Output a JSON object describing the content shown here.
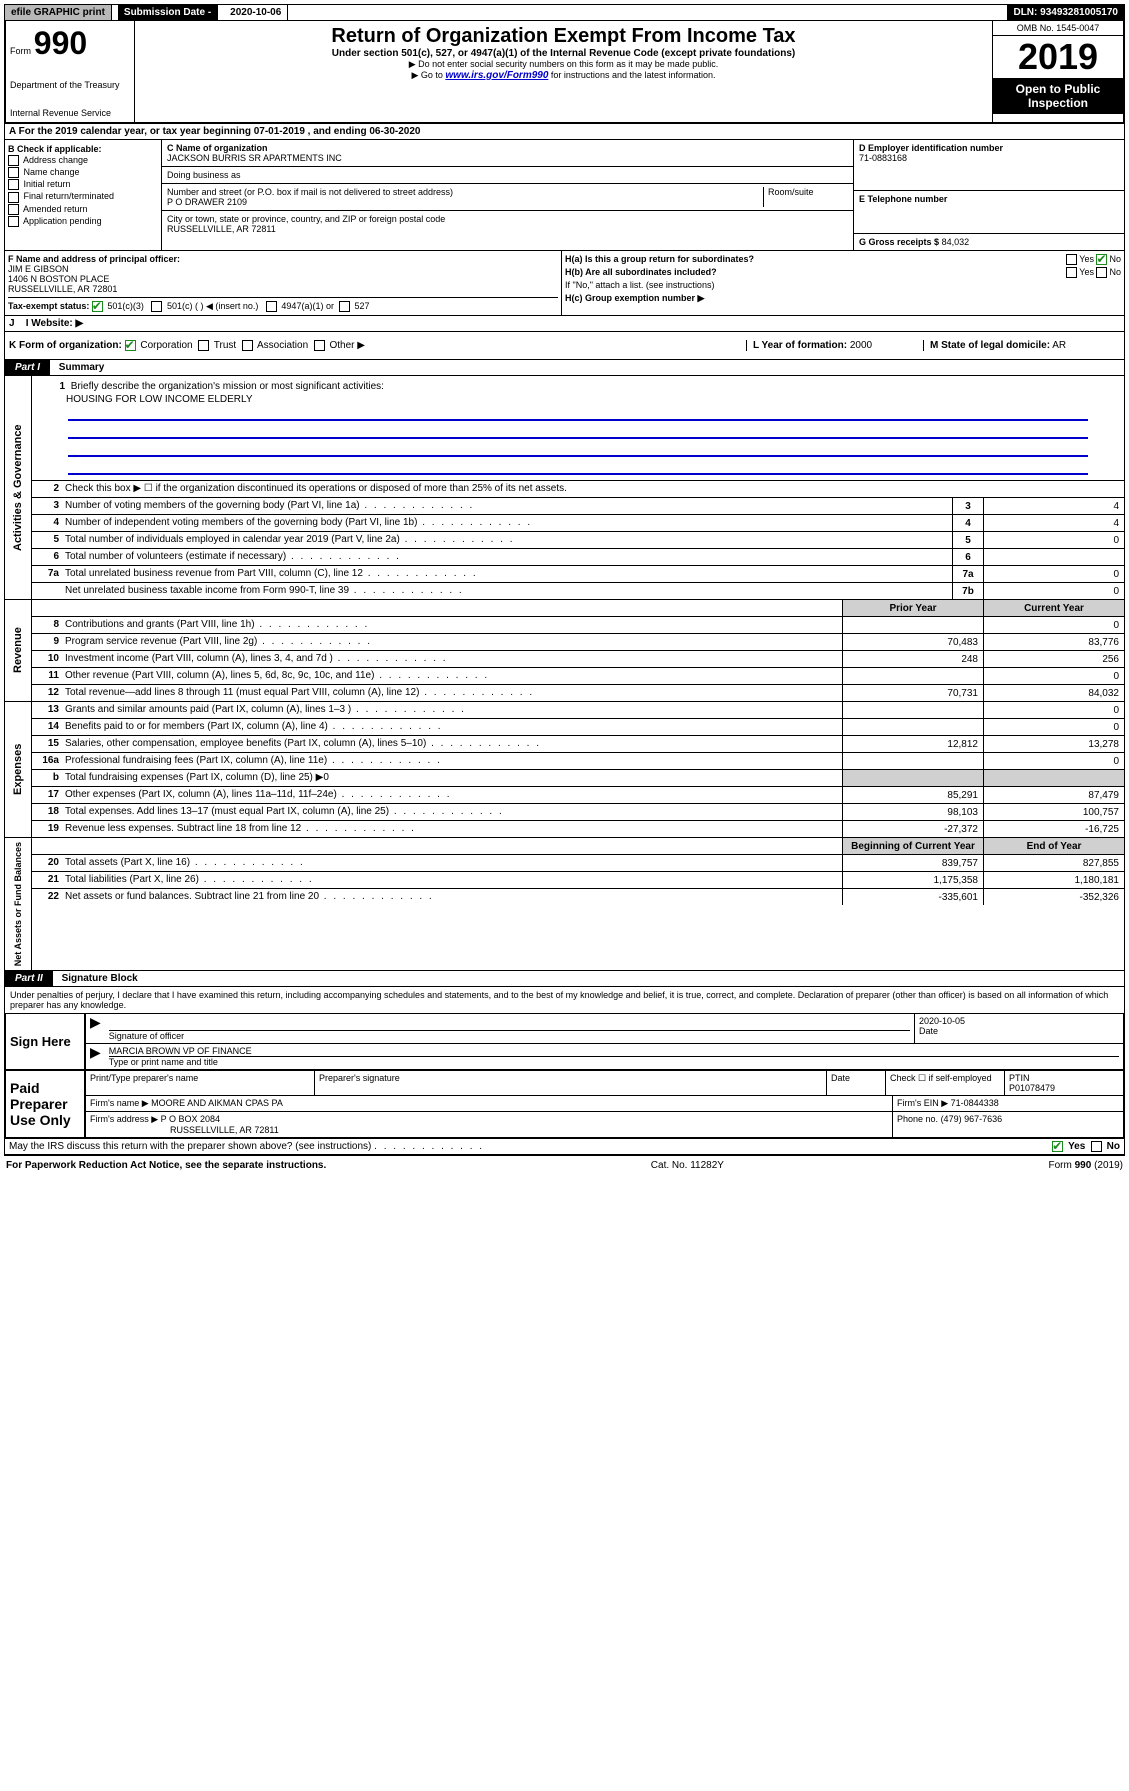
{
  "topbar": {
    "efile": "efile GRAPHIC print",
    "subdate_label": "Submission Date - 2020-10-06",
    "dln": "DLN: 93493281005170"
  },
  "header": {
    "form_prefix": "Form",
    "form_number": "990",
    "dept": "Department of the Treasury",
    "irs": "Internal Revenue Service",
    "title": "Return of Organization Exempt From Income Tax",
    "subtitle": "Under section 501(c), 527, or 4947(a)(1) of the Internal Revenue Code (except private foundations)",
    "note1": "▶ Do not enter social security numbers on this form as it may be made public.",
    "note2_pre": "▶ Go to ",
    "link": "www.irs.gov/Form990",
    "note2_post": " for instructions and the latest information.",
    "omb": "OMB No. 1545-0047",
    "year": "2019",
    "open": "Open to Public Inspection"
  },
  "line_a": "For the 2019 calendar year, or tax year beginning 07-01-2019    , and ending 06-30-2020",
  "box_b": {
    "label": "B Check if applicable:",
    "items": [
      "Address change",
      "Name change",
      "Initial return",
      "Final return/terminated",
      "Amended return",
      "Application pending"
    ]
  },
  "box_c": {
    "name_label": "C Name of organization",
    "name": "JACKSON BURRIS SR APARTMENTS INC",
    "dba_label": "Doing business as",
    "addr_label": "Number and street (or P.O. box if mail is not delivered to street address)",
    "room_label": "Room/suite",
    "addr": "P O DRAWER 2109",
    "city_label": "City or town, state or province, country, and ZIP or foreign postal code",
    "city": "RUSSELLVILLE, AR  72811"
  },
  "box_d": {
    "label": "D Employer identification number",
    "val": "71-0883168"
  },
  "box_e": {
    "label": "E Telephone number",
    "val": ""
  },
  "box_g": {
    "label": "G Gross receipts $",
    "val": "84,032"
  },
  "box_f": {
    "label": "F  Name and address of principal officer:",
    "name": "JIM E GIBSON",
    "addr1": "1406 N BOSTON PLACE",
    "addr2": "RUSSELLVILLE, AR  72801"
  },
  "box_h": {
    "ha_label": "H(a)  Is this a group return for subordinates?",
    "hb_label": "H(b)  Are all subordinates included?",
    "hb_note": "If \"No,\" attach a list. (see instructions)",
    "hc_label": "H(c)  Group exemption number ▶",
    "yes": "Yes",
    "no": "No"
  },
  "tax_status": {
    "label": "Tax-exempt status:",
    "opt1": "501(c)(3)",
    "opt2": "501(c) (  ) ◀ (insert no.)",
    "opt3": "4947(a)(1) or",
    "opt4": "527"
  },
  "box_i": "I   Website: ▶",
  "box_j": "J",
  "box_k": {
    "label": "K Form of organization:",
    "opts": [
      "Corporation",
      "Trust",
      "Association",
      "Other ▶"
    ]
  },
  "box_l": {
    "label": "L Year of formation:",
    "val": "2000"
  },
  "box_m": {
    "label": "M State of legal domicile:",
    "val": "AR"
  },
  "part1": {
    "header": "Part I",
    "title": "Summary"
  },
  "summary": {
    "q1_label": "Briefly describe the organization's mission or most significant activities:",
    "q1_val": "HOUSING FOR LOW INCOME ELDERLY",
    "q2": "Check this box ▶ ☐  if the organization discontinued its operations or disposed of more than 25% of its net assets."
  },
  "gov_rows": [
    {
      "n": "3",
      "d": "Number of voting members of the governing body (Part VI, line 1a)",
      "lab": "3",
      "v": "4"
    },
    {
      "n": "4",
      "d": "Number of independent voting members of the governing body (Part VI, line 1b)",
      "lab": "4",
      "v": "4"
    },
    {
      "n": "5",
      "d": "Total number of individuals employed in calendar year 2019 (Part V, line 2a)",
      "lab": "5",
      "v": "0"
    },
    {
      "n": "6",
      "d": "Total number of volunteers (estimate if necessary)",
      "lab": "6",
      "v": ""
    },
    {
      "n": "7a",
      "d": "Total unrelated business revenue from Part VIII, column (C), line 12",
      "lab": "7a",
      "v": "0"
    },
    {
      "n": "",
      "d": "Net unrelated business taxable income from Form 990-T, line 39",
      "lab": "7b",
      "v": "0"
    }
  ],
  "col_headers": {
    "prior": "Prior Year",
    "current": "Current Year"
  },
  "rev_rows": [
    {
      "n": "8",
      "d": "Contributions and grants (Part VIII, line 1h)",
      "p": "",
      "c": "0"
    },
    {
      "n": "9",
      "d": "Program service revenue (Part VIII, line 2g)",
      "p": "70,483",
      "c": "83,776"
    },
    {
      "n": "10",
      "d": "Investment income (Part VIII, column (A), lines 3, 4, and 7d )",
      "p": "248",
      "c": "256"
    },
    {
      "n": "11",
      "d": "Other revenue (Part VIII, column (A), lines 5, 6d, 8c, 9c, 10c, and 11e)",
      "p": "",
      "c": "0"
    },
    {
      "n": "12",
      "d": "Total revenue—add lines 8 through 11 (must equal Part VIII, column (A), line 12)",
      "p": "70,731",
      "c": "84,032"
    }
  ],
  "exp_rows": [
    {
      "n": "13",
      "d": "Grants and similar amounts paid (Part IX, column (A), lines 1–3 )",
      "p": "",
      "c": "0"
    },
    {
      "n": "14",
      "d": "Benefits paid to or for members (Part IX, column (A), line 4)",
      "p": "",
      "c": "0"
    },
    {
      "n": "15",
      "d": "Salaries, other compensation, employee benefits (Part IX, column (A), lines 5–10)",
      "p": "12,812",
      "c": "13,278"
    },
    {
      "n": "16a",
      "d": "Professional fundraising fees (Part IX, column (A), line 11e)",
      "p": "",
      "c": "0"
    },
    {
      "n": "b",
      "d": "Total fundraising expenses (Part IX, column (D), line 25) ▶0",
      "p": null,
      "c": null
    },
    {
      "n": "17",
      "d": "Other expenses (Part IX, column (A), lines 11a–11d, 11f–24e)",
      "p": "85,291",
      "c": "87,479"
    },
    {
      "n": "18",
      "d": "Total expenses. Add lines 13–17 (must equal Part IX, column (A), line 25)",
      "p": "98,103",
      "c": "100,757"
    },
    {
      "n": "19",
      "d": "Revenue less expenses. Subtract line 18 from line 12",
      "p": "-27,372",
      "c": "-16,725"
    }
  ],
  "net_headers": {
    "begin": "Beginning of Current Year",
    "end": "End of Year"
  },
  "net_rows": [
    {
      "n": "20",
      "d": "Total assets (Part X, line 16)",
      "p": "839,757",
      "c": "827,855"
    },
    {
      "n": "21",
      "d": "Total liabilities (Part X, line 26)",
      "p": "1,175,358",
      "c": "1,180,181"
    },
    {
      "n": "22",
      "d": "Net assets or fund balances. Subtract line 21 from line 20",
      "p": "-335,601",
      "c": "-352,326"
    }
  ],
  "part2": {
    "header": "Part II",
    "title": "Signature Block"
  },
  "declare": "Under penalties of perjury, I declare that I have examined this return, including accompanying schedules and statements, and to the best of my knowledge and belief, it is true, correct, and complete. Declaration of preparer (other than officer) is based on all information of which preparer has any knowledge.",
  "sign": {
    "left": "Sign Here",
    "sig_label": "Signature of officer",
    "date": "2020-10-05",
    "date_label": "Date",
    "name": "MARCIA BROWN  VP OF FINANCE",
    "name_label": "Type or print name and title"
  },
  "paid": {
    "left": "Paid Preparer Use Only",
    "h1": "Print/Type preparer's name",
    "h2": "Preparer's signature",
    "h3": "Date",
    "h4_pre": "Check ☐ if self-employed",
    "h5": "PTIN",
    "ptin": "P01078479",
    "firm_name_label": "Firm's name    ▶",
    "firm_name": "MOORE AND AIKMAN CPAS PA",
    "firm_ein_label": "Firm's EIN ▶",
    "firm_ein": "71-0844338",
    "firm_addr_label": "Firm's address ▶",
    "firm_addr1": "P O BOX 2084",
    "firm_addr2": "RUSSELLVILLE, AR  72811",
    "phone_label": "Phone no.",
    "phone": "(479) 967-7636"
  },
  "discuss": "May the IRS discuss this return with the preparer shown above? (see instructions)",
  "footer": {
    "left": "For Paperwork Reduction Act Notice, see the separate instructions.",
    "mid": "Cat. No. 11282Y",
    "right": "Form 990 (2019)"
  }
}
